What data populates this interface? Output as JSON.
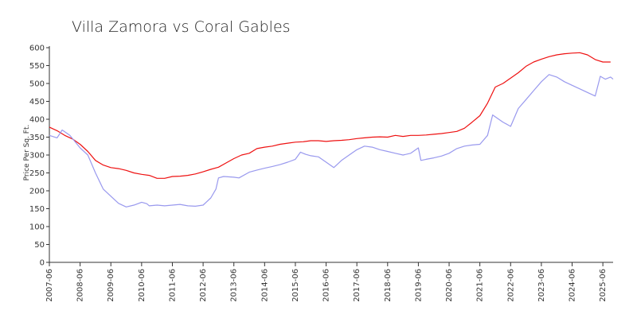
{
  "chart_data": {
    "type": "line",
    "title": "Villa Zamora vs Coral Gables",
    "xlabel": "",
    "ylabel": "Price Per Sq. Ft.",
    "ylim": [
      0,
      600
    ],
    "yticks": [
      0,
      50,
      100,
      150,
      200,
      250,
      300,
      350,
      400,
      450,
      500,
      550,
      600
    ],
    "xlim": [
      "2007-06",
      "2025-10"
    ],
    "xticks": [
      "2007-06",
      "2008-06",
      "2009-06",
      "2010-06",
      "2011-06",
      "2012-06",
      "2013-06",
      "2014-06",
      "2015-06",
      "2016-06",
      "2017-06",
      "2018-06",
      "2019-06",
      "2020-06",
      "2021-06",
      "2022-06",
      "2023-06",
      "2024-06",
      "2025-06"
    ],
    "grid": false,
    "legend": "none",
    "series": [
      {
        "color": "#ee1111",
        "points": [
          [
            "2007-06",
            378
          ],
          [
            "2007-09",
            368
          ],
          [
            "2007-12",
            355
          ],
          [
            "2008-03",
            345
          ],
          [
            "2008-06",
            330
          ],
          [
            "2008-09",
            310
          ],
          [
            "2008-12",
            285
          ],
          [
            "2009-03",
            272
          ],
          [
            "2009-06",
            265
          ],
          [
            "2009-09",
            262
          ],
          [
            "2009-12",
            257
          ],
          [
            "2010-03",
            250
          ],
          [
            "2010-06",
            246
          ],
          [
            "2010-09",
            243
          ],
          [
            "2010-12",
            235
          ],
          [
            "2011-03",
            235
          ],
          [
            "2011-06",
            240
          ],
          [
            "2011-09",
            241
          ],
          [
            "2011-12",
            243
          ],
          [
            "2012-03",
            247
          ],
          [
            "2012-06",
            253
          ],
          [
            "2012-09",
            260
          ],
          [
            "2012-12",
            266
          ],
          [
            "2013-03",
            278
          ],
          [
            "2013-06",
            290
          ],
          [
            "2013-09",
            300
          ],
          [
            "2013-12",
            305
          ],
          [
            "2014-03",
            318
          ],
          [
            "2014-06",
            322
          ],
          [
            "2014-09",
            325
          ],
          [
            "2014-12",
            330
          ],
          [
            "2015-03",
            333
          ],
          [
            "2015-06",
            336
          ],
          [
            "2015-09",
            337
          ],
          [
            "2015-12",
            340
          ],
          [
            "2016-03",
            340
          ],
          [
            "2016-06",
            338
          ],
          [
            "2016-09",
            340
          ],
          [
            "2016-12",
            341
          ],
          [
            "2017-03",
            343
          ],
          [
            "2017-06",
            346
          ],
          [
            "2017-09",
            348
          ],
          [
            "2017-12",
            350
          ],
          [
            "2018-03",
            351
          ],
          [
            "2018-06",
            350
          ],
          [
            "2018-09",
            355
          ],
          [
            "2018-12",
            352
          ],
          [
            "2019-03",
            355
          ],
          [
            "2019-06",
            355
          ],
          [
            "2019-09",
            356
          ],
          [
            "2019-12",
            358
          ],
          [
            "2020-03",
            360
          ],
          [
            "2020-06",
            363
          ],
          [
            "2020-09",
            366
          ],
          [
            "2020-12",
            375
          ],
          [
            "2021-03",
            392
          ],
          [
            "2021-06",
            410
          ],
          [
            "2021-09",
            445
          ],
          [
            "2021-12",
            490
          ],
          [
            "2022-03",
            500
          ],
          [
            "2022-06",
            515
          ],
          [
            "2022-09",
            530
          ],
          [
            "2022-12",
            548
          ],
          [
            "2023-03",
            560
          ],
          [
            "2023-06",
            568
          ],
          [
            "2023-09",
            575
          ],
          [
            "2023-12",
            580
          ],
          [
            "2024-03",
            583
          ],
          [
            "2024-06",
            585
          ],
          [
            "2024-09",
            586
          ],
          [
            "2024-12",
            580
          ],
          [
            "2025-03",
            567
          ],
          [
            "2025-06",
            560
          ],
          [
            "2025-09",
            560
          ]
        ]
      },
      {
        "color": "#9999ee",
        "points": [
          [
            "2007-06",
            355
          ],
          [
            "2007-09",
            348
          ],
          [
            "2007-11",
            370
          ],
          [
            "2008-02",
            355
          ],
          [
            "2008-06",
            320
          ],
          [
            "2008-09",
            300
          ],
          [
            "2008-12",
            250
          ],
          [
            "2009-03",
            205
          ],
          [
            "2009-06",
            185
          ],
          [
            "2009-09",
            165
          ],
          [
            "2009-12",
            155
          ],
          [
            "2010-03",
            160
          ],
          [
            "2010-06",
            168
          ],
          [
            "2010-08",
            164
          ],
          [
            "2010-09",
            158
          ],
          [
            "2010-12",
            160
          ],
          [
            "2011-03",
            158
          ],
          [
            "2011-06",
            160
          ],
          [
            "2011-09",
            162
          ],
          [
            "2011-12",
            158
          ],
          [
            "2012-03",
            157
          ],
          [
            "2012-06",
            160
          ],
          [
            "2012-09",
            180
          ],
          [
            "2012-11",
            205
          ],
          [
            "2012-12",
            236
          ],
          [
            "2013-02",
            240
          ],
          [
            "2013-06",
            238
          ],
          [
            "2013-08",
            236
          ],
          [
            "2013-12",
            252
          ],
          [
            "2014-03",
            258
          ],
          [
            "2014-06",
            263
          ],
          [
            "2014-09",
            268
          ],
          [
            "2014-12",
            273
          ],
          [
            "2015-03",
            280
          ],
          [
            "2015-06",
            288
          ],
          [
            "2015-08",
            308
          ],
          [
            "2015-10",
            302
          ],
          [
            "2015-12",
            298
          ],
          [
            "2016-03",
            295
          ],
          [
            "2016-06",
            280
          ],
          [
            "2016-09",
            265
          ],
          [
            "2016-12",
            285
          ],
          [
            "2017-03",
            300
          ],
          [
            "2017-06",
            315
          ],
          [
            "2017-09",
            325
          ],
          [
            "2017-12",
            322
          ],
          [
            "2018-03",
            315
          ],
          [
            "2018-06",
            310
          ],
          [
            "2018-09",
            305
          ],
          [
            "2018-12",
            300
          ],
          [
            "2019-03",
            305
          ],
          [
            "2019-06",
            320
          ],
          [
            "2019-07",
            285
          ],
          [
            "2019-09",
            288
          ],
          [
            "2019-12",
            292
          ],
          [
            "2020-03",
            297
          ],
          [
            "2020-06",
            305
          ],
          [
            "2020-09",
            318
          ],
          [
            "2020-12",
            325
          ],
          [
            "2021-03",
            328
          ],
          [
            "2021-06",
            330
          ],
          [
            "2021-09",
            355
          ],
          [
            "2021-11",
            412
          ],
          [
            "2022-03",
            392
          ],
          [
            "2022-06",
            380
          ],
          [
            "2022-09",
            430
          ],
          [
            "2022-12",
            455
          ],
          [
            "2023-03",
            480
          ],
          [
            "2023-06",
            505
          ],
          [
            "2023-09",
            525
          ],
          [
            "2023-12",
            518
          ],
          [
            "2024-03",
            505
          ],
          [
            "2024-06",
            495
          ],
          [
            "2024-09",
            485
          ],
          [
            "2024-12",
            475
          ],
          [
            "2025-03",
            465
          ],
          [
            "2025-05",
            520
          ],
          [
            "2025-07",
            512
          ],
          [
            "2025-09",
            518
          ],
          [
            "2025-10",
            512
          ]
        ]
      }
    ]
  }
}
